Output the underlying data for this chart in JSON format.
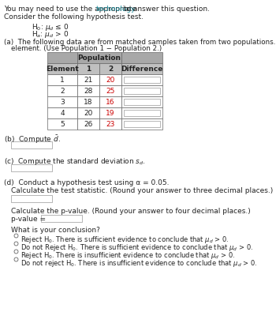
{
  "elements": [
    1,
    2,
    3,
    4,
    5
  ],
  "pop1": [
    21,
    28,
    18,
    20,
    26
  ],
  "pop2": [
    20,
    25,
    16,
    19,
    23
  ],
  "pop2_color": "#cc0000",
  "header_color": "#a8a8a8",
  "subheader_color": "#c0c0c0",
  "bg_color": "#ffffff",
  "text_color": "#222222",
  "link_color": "#2090a0",
  "font_size": 6.5,
  "small_font": 6.0,
  "table_font": 6.5
}
